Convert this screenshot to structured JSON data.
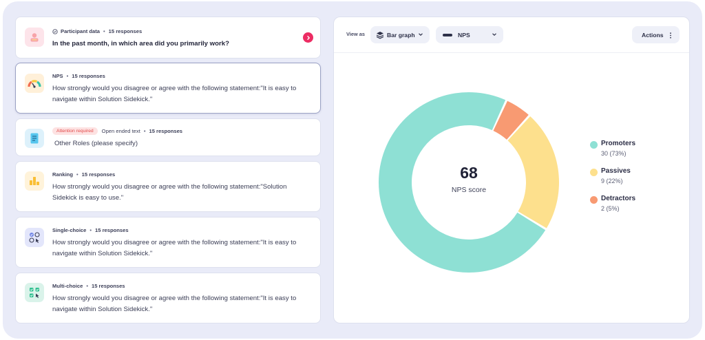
{
  "questions": [
    {
      "type": "Participant data",
      "count": "15 responses",
      "text": "In the past month, in which area did you primarily work?",
      "icon": "participant-data-icon"
    },
    {
      "type": "NPS",
      "count": "15 responses",
      "text": "How strongly would you disagree or agree with the following statement:\"It is easy to navigate within Solution Sidekick.\"",
      "icon": "gauge-icon"
    },
    {
      "badge": "Attention required",
      "type": "Open ended text",
      "count": "15 responses",
      "text": "Other Roles (please specify)",
      "icon": "document-icon"
    },
    {
      "type": "Ranking",
      "count": "15 responses",
      "text": "How strongly would you disagree or agree with the following statement:\"Solution Sidekick is easy to use.\"",
      "icon": "ranking-bars-icon"
    },
    {
      "type": "Single-choice",
      "count": "15 responses",
      "text": "How strongly would you disagree or agree with the following statement:\"It is easy to navigate within Solution Sidekick.\"",
      "icon": "single-choice-icon"
    },
    {
      "type": "Multi-choice",
      "count": "15 responses",
      "text": "How strongly would you disagree or agree with the following statement:\"It is easy to navigate within Solution Sidekick.\"",
      "icon": "multi-choice-icon"
    }
  ],
  "toolbar": {
    "view_as_label": "View as",
    "view_select": "Bar graph",
    "metric_select": "NPS",
    "actions_label": "Actions"
  },
  "nps": {
    "score": "68",
    "score_label": "NPS score"
  },
  "legend": [
    {
      "name": "Promoters",
      "value": "30 (73%)",
      "color": "#8ee0d4"
    },
    {
      "name": "Passives",
      "value": "9 (22%)",
      "color": "#fde08d"
    },
    {
      "name": "Detractors",
      "value": "2 (5%)",
      "color": "#f89a72"
    }
  ],
  "chart_data": {
    "type": "pie",
    "donut": true,
    "categories": [
      "Promoters",
      "Passives",
      "Detractors"
    ],
    "values": [
      30,
      9,
      2
    ],
    "percentages": [
      73,
      22,
      5
    ],
    "center_value": 68,
    "center_label": "NPS score",
    "legend_position": "right"
  }
}
